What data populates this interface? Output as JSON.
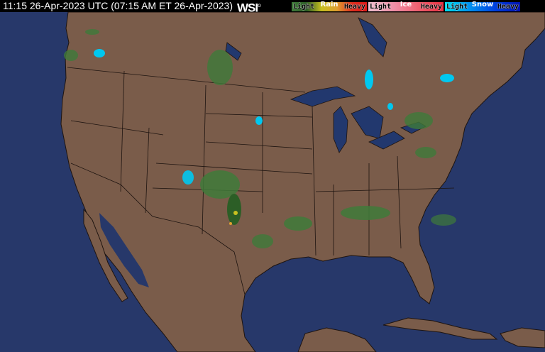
{
  "header": {
    "timestamp": "11:15 26-Apr-2023 UTC  (07:15 AM ET 26-Apr-2023)",
    "logo": "WSI"
  },
  "legend": [
    {
      "type": "Rain",
      "low": "Light",
      "high": "Heavy",
      "gradient": [
        "#3f7a3a",
        "#2c5e26",
        "#c8c020",
        "#e0a030",
        "#e03020",
        "#e01818"
      ]
    },
    {
      "type": "Ice",
      "low": "Light",
      "high": "Heavy",
      "gradient": [
        "#f0c0d0",
        "#f090a8",
        "#f06070",
        "#e83040"
      ]
    },
    {
      "type": "Snow",
      "low": "Light",
      "high": "Heavy",
      "gradient": [
        "#00e0f0",
        "#0090f0",
        "#0040e0",
        "#0010b0"
      ]
    }
  ],
  "colors": {
    "land": "#7a5c4a",
    "ocean": "#27386a",
    "lakes": "#22386e",
    "borders": "#1e1410"
  }
}
